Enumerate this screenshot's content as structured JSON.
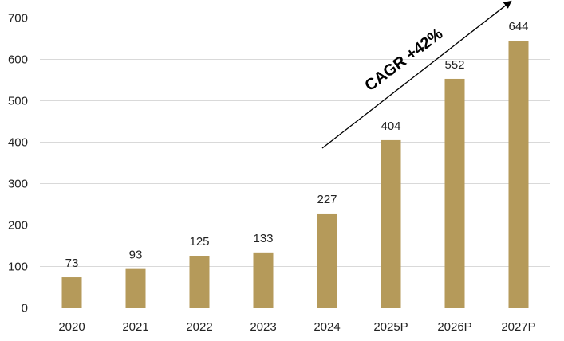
{
  "chart_data": {
    "type": "bar",
    "categories": [
      "2020",
      "2021",
      "2022",
      "2023",
      "2024",
      "2025P",
      "2026P",
      "2027P"
    ],
    "values": [
      73,
      93,
      125,
      133,
      227,
      404,
      552,
      644
    ],
    "ylim": [
      0,
      700
    ],
    "yticks": [
      0,
      100,
      200,
      300,
      400,
      500,
      600,
      700
    ],
    "grid": true,
    "bar_color": "#b59a5a",
    "annotation": {
      "text": "CAGR +42%",
      "arrow": true
    }
  }
}
